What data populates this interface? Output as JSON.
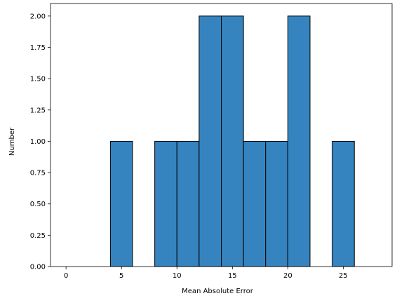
{
  "chart_data": {
    "type": "bar",
    "title": "",
    "xlabel": "Mean Absolute Error",
    "ylabel": "Number",
    "xlim": [
      -1.4,
      29.4
    ],
    "ylim": [
      0,
      2.1
    ],
    "bin_edges": [
      0,
      2,
      4,
      6,
      8,
      10,
      12,
      14,
      16,
      18,
      20,
      22,
      24,
      26,
      28
    ],
    "values": [
      0,
      0,
      1,
      0,
      1,
      1,
      2,
      2,
      1,
      1,
      2,
      0,
      1,
      0
    ],
    "x_ticks": [
      0,
      5,
      10,
      15,
      20,
      25
    ],
    "x_tick_labels": [
      "0",
      "5",
      "10",
      "15",
      "20",
      "25"
    ],
    "y_ticks": [
      0,
      0.25,
      0.5,
      0.75,
      1.0,
      1.25,
      1.5,
      1.75,
      2.0
    ],
    "y_tick_labels": [
      "0.00",
      "0.25",
      "0.50",
      "0.75",
      "1.00",
      "1.25",
      "1.50",
      "1.75",
      "2.00"
    ],
    "bar_color": "#3584bf",
    "edge_color": "#000000",
    "grid": false,
    "legend": "none"
  }
}
